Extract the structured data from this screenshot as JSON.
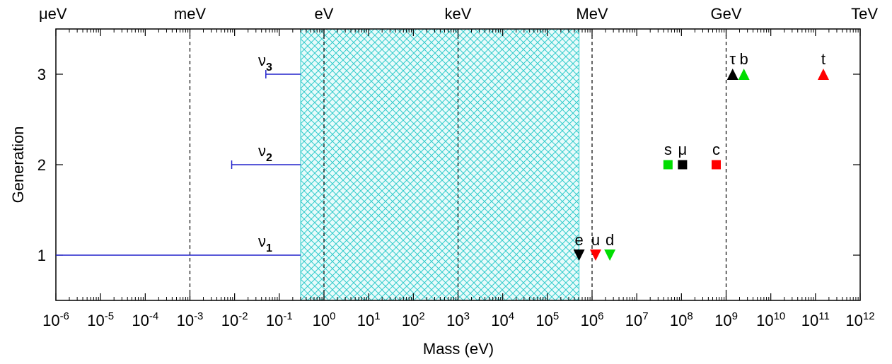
{
  "chart_data": {
    "type": "scatter",
    "xlabel": "Mass  (eV)",
    "ylabel": "Generation",
    "xscale": "log",
    "xlim": [
      1e-06,
      1000000000000.0
    ],
    "ylim": [
      0.5,
      3.5
    ],
    "y_ticks": [
      {
        "value": 1,
        "label": "1"
      },
      {
        "value": 2,
        "label": "2"
      },
      {
        "value": 3,
        "label": "3"
      }
    ],
    "x_ticks": [
      {
        "exp": -6,
        "base": "10",
        "sup": "-6"
      },
      {
        "exp": -5,
        "base": "10",
        "sup": "-5"
      },
      {
        "exp": -4,
        "base": "10",
        "sup": "-4"
      },
      {
        "exp": -3,
        "base": "10",
        "sup": "-3"
      },
      {
        "exp": -2,
        "base": "10",
        "sup": "-2"
      },
      {
        "exp": -1,
        "base": "10",
        "sup": "-1"
      },
      {
        "exp": 0,
        "base": "10",
        "sup": "0"
      },
      {
        "exp": 1,
        "base": "10",
        "sup": "1"
      },
      {
        "exp": 2,
        "base": "10",
        "sup": "2"
      },
      {
        "exp": 3,
        "base": "10",
        "sup": "3"
      },
      {
        "exp": 4,
        "base": "10",
        "sup": "4"
      },
      {
        "exp": 5,
        "base": "10",
        "sup": "5"
      },
      {
        "exp": 6,
        "base": "10",
        "sup": "6"
      },
      {
        "exp": 7,
        "base": "10",
        "sup": "7"
      },
      {
        "exp": 8,
        "base": "10",
        "sup": "8"
      },
      {
        "exp": 9,
        "base": "10",
        "sup": "9"
      },
      {
        "exp": 10,
        "base": "10",
        "sup": "10"
      },
      {
        "exp": 11,
        "base": "10",
        "sup": "11"
      },
      {
        "exp": 12,
        "base": "10",
        "sup": "12"
      }
    ],
    "top_axis_labels": [
      {
        "exp": -6,
        "label": "μeV"
      },
      {
        "exp": -3,
        "label": "meV"
      },
      {
        "exp": 0,
        "label": "eV"
      },
      {
        "exp": 3,
        "label": "keV"
      },
      {
        "exp": 6,
        "label": "MeV"
      },
      {
        "exp": 9,
        "label": "GeV"
      },
      {
        "exp": 12,
        "label": "TeV"
      }
    ],
    "vertical_dashed_lines": [
      -3,
      0,
      3,
      6,
      9
    ],
    "shaded_region": {
      "x_from": 0.3,
      "x_to": 511000,
      "color": "#33cccc",
      "pattern": "crosshatch"
    },
    "neutrino_limits": [
      {
        "name": "ν",
        "sub": "1",
        "generation": 1,
        "x_min": 1e-06,
        "x_max": 0.3
      },
      {
        "name": "ν",
        "sub": "2",
        "generation": 2,
        "x_min": 0.0086,
        "x_max": 0.3
      },
      {
        "name": "ν",
        "sub": "3",
        "generation": 3,
        "x_min": 0.05,
        "x_max": 0.3
      }
    ],
    "particles": [
      {
        "label": "e",
        "mass": 511000,
        "generation": 1,
        "marker": "triangle-down",
        "color": "#000000"
      },
      {
        "label": "u",
        "mass": 1200000,
        "generation": 1,
        "marker": "triangle-down",
        "color": "#ff0000"
      },
      {
        "label": "d",
        "mass": 2500000,
        "generation": 1,
        "marker": "triangle-down",
        "color": "#00dd00"
      },
      {
        "label": "s",
        "mass": 50000000,
        "generation": 2,
        "marker": "square",
        "color": "#00dd00"
      },
      {
        "label": "μ",
        "mass": 105700000,
        "generation": 2,
        "marker": "square",
        "color": "#000000"
      },
      {
        "label": "c",
        "mass": 600000000,
        "generation": 2,
        "marker": "square",
        "color": "#ff0000"
      },
      {
        "label": "τ",
        "mass": 1400000000,
        "generation": 3,
        "marker": "triangle-up",
        "color": "#000000"
      },
      {
        "label": "b",
        "mass": 2500000000,
        "generation": 3,
        "marker": "triangle-up",
        "color": "#00dd00"
      },
      {
        "label": "t",
        "mass": 150000000000,
        "generation": 3,
        "marker": "triangle-up",
        "color": "#ff0000"
      }
    ]
  }
}
